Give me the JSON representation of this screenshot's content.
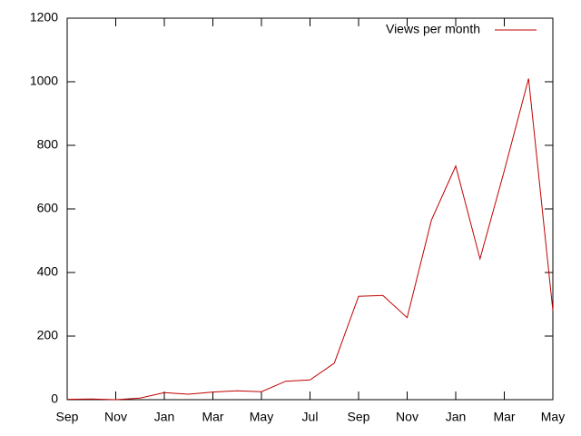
{
  "chart_data": {
    "type": "line",
    "categories": [
      "Sep",
      null,
      "Nov",
      null,
      "Jan",
      null,
      "Mar",
      null,
      "May",
      null,
      "Jul",
      null,
      "Sep",
      null,
      "Nov",
      null,
      "Jan",
      null,
      "Mar",
      null,
      "May"
    ],
    "series": [
      {
        "name": "Views per month",
        "color": "#c00000",
        "values": [
          1,
          2,
          0,
          5,
          22,
          17,
          24,
          28,
          25,
          58,
          62,
          115,
          325,
          328,
          258,
          565,
          735,
          443,
          720,
          1010,
          280
        ]
      }
    ],
    "ylim": [
      0,
      1200
    ],
    "yticks": [
      0,
      200,
      400,
      600,
      800,
      1000,
      1200
    ],
    "legend": "top-right"
  }
}
